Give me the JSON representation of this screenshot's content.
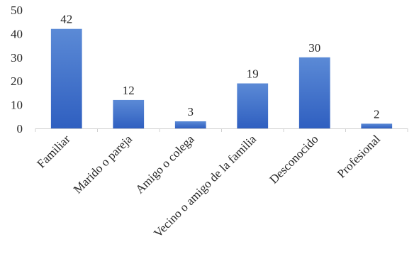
{
  "chart_data": {
    "type": "bar",
    "categories": [
      "Familiar",
      "Marido o pareja",
      "Amigo o colega",
      "Vecino o amigo de la familia",
      "Desconocido",
      "Profesional"
    ],
    "values": [
      42,
      12,
      3,
      19,
      30,
      2
    ],
    "data_labels": [
      "42",
      "12",
      "3",
      "19",
      "30",
      "2"
    ],
    "title": "",
    "xlabel": "",
    "ylabel": "",
    "ylim": [
      0,
      50
    ],
    "yticks": [
      "0",
      "10",
      "20",
      "30",
      "40",
      "50"
    ],
    "grid": false,
    "legend": "none",
    "bar_color_top": "#5b8ad6",
    "bar_color_bottom": "#2f5fc0",
    "axis_color": "#d0d0d0"
  }
}
